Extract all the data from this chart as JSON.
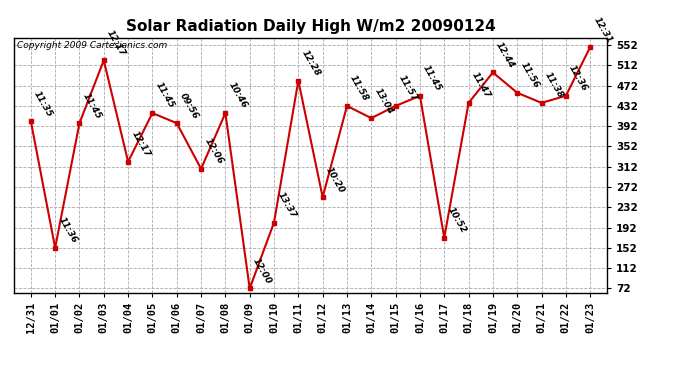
{
  "title": "Solar Radiation Daily High W/m2 20090124",
  "copyright": "Copyright 2009 Cartesianics.com",
  "x_labels": [
    "12/31",
    "01/01",
    "01/02",
    "01/03",
    "01/04",
    "01/05",
    "01/06",
    "01/07",
    "01/08",
    "01/09",
    "01/10",
    "01/11",
    "01/12",
    "01/13",
    "01/14",
    "01/15",
    "01/16",
    "01/17",
    "01/18",
    "01/19",
    "01/20",
    "01/21",
    "01/22",
    "01/23"
  ],
  "y_values": [
    402,
    152,
    398,
    522,
    322,
    418,
    398,
    308,
    418,
    72,
    202,
    482,
    252,
    432,
    408,
    432,
    452,
    172,
    438,
    498,
    458,
    438,
    452,
    548
  ],
  "point_labels": [
    "11:35",
    "11:36",
    "11:45",
    "12:17",
    "12:17",
    "11:45",
    "09:56",
    "12:06",
    "10:46",
    "12:00",
    "13:37",
    "12:28",
    "10:20",
    "11:58",
    "13:04",
    "11:57",
    "11:45",
    "10:52",
    "11:47",
    "12:44",
    "11:56",
    "11:38",
    "12:36",
    "12:31"
  ],
  "line_color": "#cc0000",
  "marker_color": "#cc0000",
  "bg_color": "#ffffff",
  "grid_color": "#aaaaaa",
  "y_min": 72,
  "y_max": 552,
  "y_ticks": [
    72,
    112,
    152,
    192,
    232,
    272,
    312,
    352,
    392,
    432,
    472,
    512,
    552
  ],
  "label_fontsize": 6.5,
  "tick_fontsize": 7.5,
  "title_fontsize": 11
}
